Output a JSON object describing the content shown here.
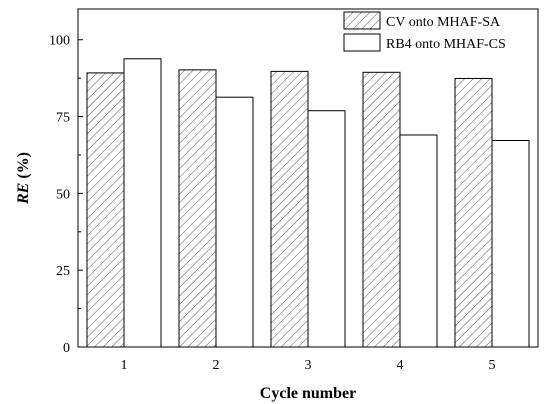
{
  "chart_data": {
    "type": "bar",
    "categories": [
      "1",
      "2",
      "3",
      "4",
      "5"
    ],
    "series": [
      {
        "name": "CV onto MHAF-SA",
        "values": [
          89.2,
          90.2,
          89.7,
          89.4,
          87.4
        ],
        "pattern": "diagonal-hatch"
      },
      {
        "name": "RB4 onto MHAF-CS",
        "values": [
          93.8,
          81.3,
          76.9,
          69.0,
          67.2
        ],
        "pattern": "none"
      }
    ],
    "xlabel": "Cycle number",
    "ylabel_italic": "RE",
    "ylabel_rest": " (%)",
    "ylim": [
      0,
      110
    ],
    "yticks": [
      "0",
      "25",
      "50",
      "75",
      "100"
    ],
    "grid": false,
    "legend_position": "top-right",
    "colors": {
      "bar_fill": "#ffffff",
      "hatch": "#555555",
      "stroke": "#000000"
    }
  }
}
